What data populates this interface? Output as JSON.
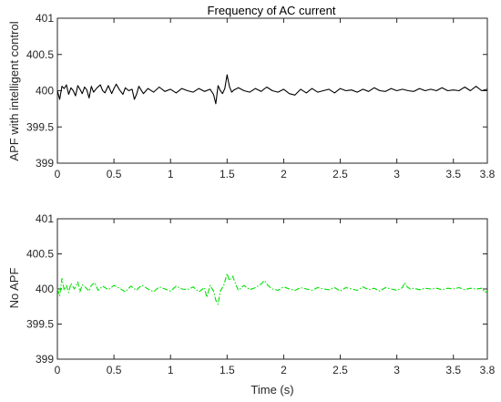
{
  "colors": {
    "top_series": "#000000",
    "bottom_series": "#00e000",
    "axes": "#262626"
  },
  "chart_data": [
    {
      "type": "line",
      "title": "Frequency of AC current",
      "xlabel": "",
      "ylabel": "APF with intelligent control",
      "xlim": [
        0,
        3.8
      ],
      "ylim": [
        399,
        401
      ],
      "xticks": [
        "0",
        "0.5",
        "1",
        "1.5",
        "2",
        "2.5",
        "3",
        "3.5",
        "3.8"
      ],
      "yticks": [
        "399",
        "399.5",
        "400",
        "400.5",
        "401"
      ],
      "grid": false,
      "series": [
        {
          "color": "#000000",
          "linestyle": "solid",
          "x": [
            0,
            0.02,
            0.04,
            0.06,
            0.08,
            0.1,
            0.12,
            0.14,
            0.16,
            0.18,
            0.2,
            0.22,
            0.24,
            0.26,
            0.28,
            0.3,
            0.32,
            0.35,
            0.38,
            0.4,
            0.42,
            0.45,
            0.48,
            0.5,
            0.52,
            0.55,
            0.58,
            0.6,
            0.63,
            0.66,
            0.68,
            0.7,
            0.72,
            0.74,
            0.76,
            0.8,
            0.85,
            0.9,
            0.95,
            1.0,
            1.05,
            1.1,
            1.15,
            1.2,
            1.25,
            1.3,
            1.35,
            1.38,
            1.4,
            1.42,
            1.44,
            1.46,
            1.48,
            1.5,
            1.52,
            1.54,
            1.56,
            1.6,
            1.65,
            1.7,
            1.75,
            1.8,
            1.85,
            1.9,
            1.95,
            2.0,
            2.05,
            2.1,
            2.15,
            2.2,
            2.25,
            2.3,
            2.35,
            2.4,
            2.45,
            2.5,
            2.55,
            2.6,
            2.65,
            2.7,
            2.75,
            2.8,
            2.85,
            2.9,
            2.95,
            3.0,
            3.05,
            3.1,
            3.15,
            3.2,
            3.25,
            3.3,
            3.35,
            3.4,
            3.45,
            3.5,
            3.55,
            3.6,
            3.65,
            3.7,
            3.75,
            3.8
          ],
          "y": [
            400.0,
            399.88,
            400.06,
            400.03,
            400.08,
            399.95,
            400.04,
            400.0,
            399.93,
            400.07,
            400.02,
            399.96,
            400.05,
            400.01,
            399.9,
            400.06,
            399.98,
            400.04,
            400.08,
            400.0,
            399.97,
            400.07,
            399.96,
            400.03,
            400.09,
            400.01,
            399.95,
            400.04,
            400.0,
            400.02,
            399.88,
            399.95,
            400.06,
            400.01,
            399.96,
            400.03,
            399.98,
            400.05,
            399.99,
            400.02,
            399.97,
            400.03,
            400.0,
            399.98,
            400.03,
            399.99,
            400.02,
            399.95,
            399.82,
            400.07,
            400.0,
            399.96,
            400.03,
            400.22,
            400.06,
            399.98,
            400.01,
            400.04,
            400.0,
            399.98,
            400.03,
            399.99,
            400.05,
            400.0,
            399.98,
            400.02,
            399.96,
            399.94,
            400.02,
            399.97,
            400.03,
            399.98,
            400.0,
            400.02,
            399.97,
            400.03,
            400.0,
            400.01,
            399.98,
            400.02,
            399.99,
            400.04,
            400.0,
            399.99,
            400.03,
            400.0,
            400.02,
            400.0,
            399.99,
            400.03,
            400.0,
            400.02,
            400.0,
            400.04,
            400.0,
            400.01,
            400.0,
            400.05,
            400.0,
            400.06,
            400.0,
            400.02
          ]
        }
      ]
    },
    {
      "type": "line",
      "xlabel": "Time (s)",
      "ylabel": "No APF",
      "xlim": [
        0,
        3.8
      ],
      "ylim": [
        399,
        401
      ],
      "xticks": [
        "0",
        "0.5",
        "1",
        "1.5",
        "2",
        "2.5",
        "3",
        "3.5",
        "3.8"
      ],
      "yticks": [
        "399",
        "399.5",
        "400",
        "400.5",
        "401"
      ],
      "grid": false,
      "series": [
        {
          "color": "#00e000",
          "linestyle": "dashdot",
          "x": [
            0,
            0.02,
            0.04,
            0.06,
            0.08,
            0.1,
            0.12,
            0.15,
            0.18,
            0.2,
            0.22,
            0.25,
            0.28,
            0.3,
            0.33,
            0.36,
            0.4,
            0.45,
            0.5,
            0.55,
            0.6,
            0.65,
            0.7,
            0.72,
            0.75,
            0.8,
            0.85,
            0.9,
            0.95,
            1.0,
            1.05,
            1.1,
            1.15,
            1.2,
            1.25,
            1.3,
            1.32,
            1.35,
            1.38,
            1.4,
            1.42,
            1.44,
            1.47,
            1.5,
            1.52,
            1.55,
            1.58,
            1.6,
            1.65,
            1.7,
            1.75,
            1.8,
            1.83,
            1.86,
            1.9,
            1.95,
            2.0,
            2.05,
            2.1,
            2.15,
            2.2,
            2.25,
            2.3,
            2.35,
            2.4,
            2.45,
            2.5,
            2.55,
            2.6,
            2.65,
            2.7,
            2.75,
            2.8,
            2.85,
            2.9,
            2.95,
            3.0,
            3.05,
            3.07,
            3.09,
            3.12,
            3.15,
            3.2,
            3.25,
            3.3,
            3.35,
            3.4,
            3.45,
            3.5,
            3.55,
            3.6,
            3.65,
            3.7,
            3.75,
            3.78,
            3.8
          ],
          "y": [
            400.0,
            399.9,
            400.15,
            399.98,
            400.05,
            399.95,
            400.08,
            400.0,
            400.1,
            399.96,
            400.06,
            400.02,
            399.97,
            400.05,
            400.09,
            399.98,
            400.04,
            399.99,
            400.05,
            400.01,
            399.96,
            400.04,
            399.98,
            400.02,
            400.05,
            400.0,
            399.96,
            400.03,
            400.0,
            399.97,
            400.04,
            400.0,
            399.99,
            400.03,
            399.96,
            400.02,
            399.88,
            400.05,
            399.97,
            399.84,
            399.78,
            399.97,
            400.05,
            400.22,
            400.12,
            400.18,
            400.05,
            399.98,
            400.05,
            399.99,
            400.02,
            400.07,
            400.12,
            400.05,
            400.0,
            399.98,
            400.03,
            400.0,
            399.98,
            400.02,
            400.0,
            399.98,
            400.02,
            400.0,
            399.99,
            400.02,
            399.97,
            400.02,
            400.0,
            399.98,
            400.03,
            399.99,
            400.01,
            399.97,
            400.02,
            400.0,
            399.98,
            400.02,
            400.09,
            400.03,
            400.0,
            400.01,
            399.99,
            400.01,
            400.0,
            400.01,
            399.99,
            400.01,
            400.0,
            400.02,
            399.99,
            400.01,
            400.0,
            400.01,
            399.95,
            399.97
          ]
        }
      ]
    }
  ]
}
